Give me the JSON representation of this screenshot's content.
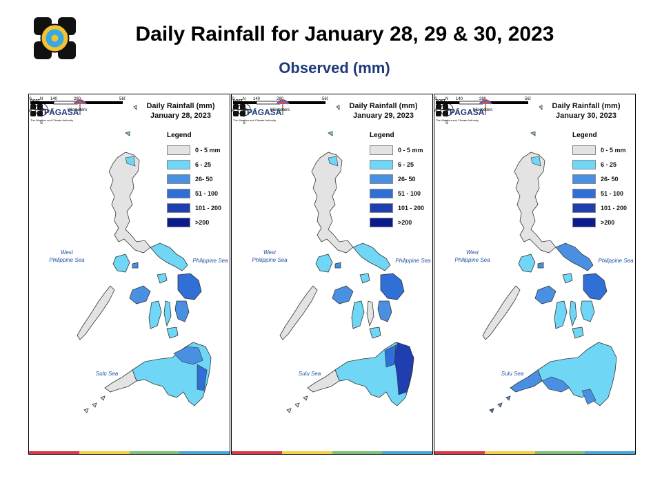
{
  "header": {
    "title": "Daily Rainfall for January 28, 29 & 30, 2023",
    "subtitle": "Observed (mm)"
  },
  "legend": {
    "heading": "Legend",
    "classes": [
      {
        "label": "0 - 5 mm",
        "color": "#e3e3e3"
      },
      {
        "label": "6 - 25",
        "color": "#6fd6f5"
      },
      {
        "label": "26- 50",
        "color": "#4a90e2"
      },
      {
        "label": "51 - 100",
        "color": "#2f6fd6"
      },
      {
        "label": "101 - 200",
        "color": "#1f3fb0"
      },
      {
        "label": ">200",
        "color": "#0b1a8c"
      }
    ]
  },
  "labels": {
    "west_sea_1": "West",
    "west_sea_2": "Philippine Sea",
    "east_sea": "Philippine Sea",
    "south_sea": "Sulu Sea",
    "scale_ticks": [
      "0",
      "140",
      "280",
      "560"
    ],
    "scale_unit": "Kilometers",
    "compass": [
      "N",
      "S",
      "E",
      "W"
    ],
    "pagasa_small": "DOST",
    "pagasa_big": "PAGASA",
    "pagasa_tag": "The Weather and Climate Authority"
  },
  "panels": [
    {
      "title_1": "Daily Rainfall (mm)",
      "title_2": "January 28, 2023",
      "legend_row_labels": [
        "0 - 5 mm",
        "6 - 25",
        "26- 50",
        "51 - 100",
        "101 - 200",
        ">200"
      ]
    },
    {
      "title_1": "Daily Rainfall (mm)",
      "title_2": "January 29, 2023",
      "legend_row_labels": [
        "0 - 5 mm",
        "6 - 25",
        "26- 50",
        "51 - 100",
        "101 - 200",
        ">200"
      ]
    },
    {
      "title_1": "Daily Rainfall (mm)",
      "title_2": "January 30, 2023",
      "legend_row_labels": [
        "0 - 5 mm",
        "6 - 25",
        "26- 50",
        "51 - 100",
        "101 - 200",
        ">200"
      ]
    }
  ],
  "strip_colors": [
    "#d83a4a",
    "#f2d04a",
    "#7cc07a",
    "#4aa6d8"
  ]
}
